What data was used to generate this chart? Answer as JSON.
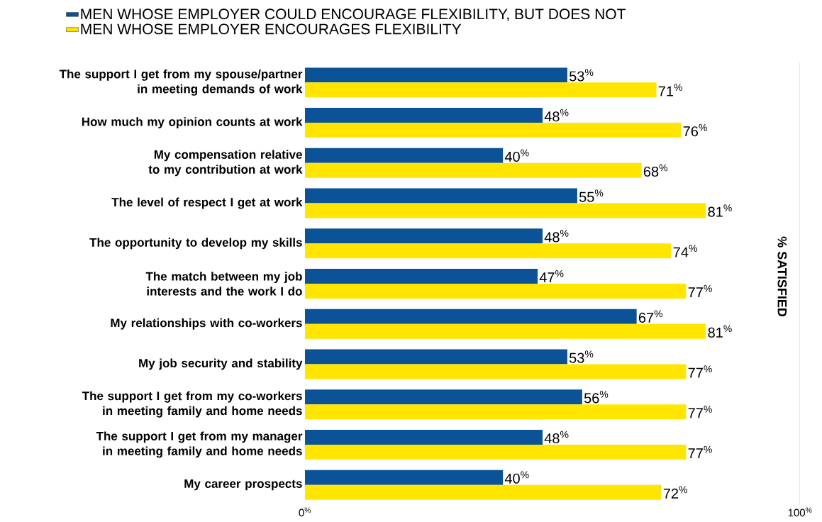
{
  "chart_data": {
    "type": "bar",
    "orientation": "horizontal",
    "legend": "top left",
    "annotations": [
      "% SATISFIED"
    ],
    "ref_lines": [
      {
        "axis": "x",
        "value": 100,
        "color": "#666666"
      }
    ],
    "categories": [
      "The support I get from my spouse/partner in meeting demands of work",
      "How much my opinion counts at work",
      "My compensation relative to my contribution at work",
      "The level of respect I get at work",
      "The opportunity to develop my skills",
      "The match between my job interests and the work I do",
      "My relationships with co-workers",
      "My job security and stability",
      "The support I get from my co-workers in meeting family and home needs",
      "The support I get from my manager in meeting family and home needs",
      "My career prospects"
    ],
    "xlim": [
      0,
      100
    ],
    "xticks": [
      {
        "value": 0,
        "label": "0$^{%}$"
      },
      {
        "value": 100,
        "label": "100$^{%}$"
      }
    ],
    "series": [
      {
        "name": "MEN WHOSE EMPLOYER COULD ENCOURAGE FLEXIBILITY, BUT DOES NOT",
        "color": "#0b5396",
        "values": [
          53,
          48,
          40,
          55,
          48,
          47,
          67,
          53,
          56,
          48,
          40
        ],
        "value_labels": [
          "53$^{%}$",
          "48$^{%}$",
          "40$^{%}$",
          "55$^{%}$",
          "48$^{%}$",
          "47$^{%}$",
          "67$^{%}$",
          "53$^{%}$",
          "56$^{%}$",
          "48$^{%}$",
          "40$^{%}$"
        ]
      },
      {
        "name": "MEN WHOSE EMPLOYER ENCOURAGES FLEXIBILITY",
        "color": "#ffe500",
        "values": [
          71,
          76,
          68,
          81,
          74,
          77,
          81,
          77,
          77,
          77,
          72
        ],
        "value_labels": [
          "71$^{%}$",
          "76$^{%}$",
          "68$^{%}$",
          "81$^{%}$",
          "74$^{%}$",
          "77$^{%}$",
          "81$^{%}$",
          "77$^{%}$",
          "77$^{%}$",
          "77$^{%}$",
          "72$^{%}$"
        ]
      }
    ]
  }
}
